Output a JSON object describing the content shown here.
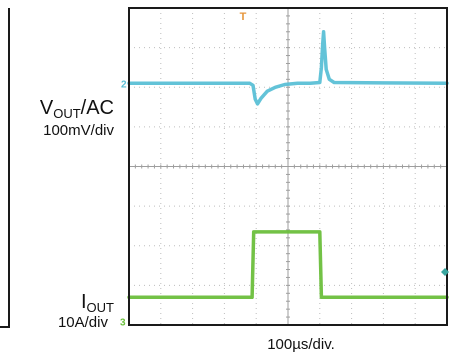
{
  "labels": {
    "vout_symbol": "V",
    "vout_sub": "OUT",
    "vout_suffix": "/AC",
    "vout_scale": "100mV/div",
    "iout_symbol": "I",
    "iout_sub": "OUT",
    "iout_scale": "10A/div",
    "time_scale": "100µs/div."
  },
  "markers": {
    "trigger": "T",
    "ch2": "2",
    "ch3": "3"
  },
  "colors": {
    "background": "#ffffff",
    "frame": "#1a1a1a",
    "grid": "#bdbdbd",
    "vout_trace": "#5bc0d6",
    "iout_trace": "#6cbf3c",
    "trigger_marker": "#e6963c"
  },
  "chart_data": {
    "type": "line",
    "grid": true,
    "divisions": {
      "x": 10,
      "y": 8
    },
    "xlim_div": [
      0,
      10
    ],
    "ylim_div": [
      0,
      8
    ],
    "series": [
      {
        "name": "VOUT/AC",
        "color": "#5bc0d6",
        "x_div": [
          0,
          3.8,
          3.9,
          3.97,
          4.04,
          4.15,
          4.35,
          4.6,
          4.9,
          5.3,
          5.7,
          6.0,
          6.05,
          6.09,
          6.12,
          6.15,
          6.2,
          6.3,
          6.45,
          10
        ],
        "y_div": [
          6.1,
          6.1,
          6.05,
          5.7,
          5.58,
          5.72,
          5.9,
          6.0,
          6.07,
          6.1,
          6.1,
          6.12,
          6.5,
          7.1,
          7.4,
          7.0,
          6.45,
          6.2,
          6.12,
          6.1
        ]
      },
      {
        "name": "IOUT",
        "color": "#6cbf3c",
        "x_div": [
          0,
          3.87,
          3.92,
          6.0,
          6.05,
          10
        ],
        "y_div": [
          0.7,
          0.7,
          2.35,
          2.35,
          0.7,
          0.7
        ]
      }
    ]
  }
}
